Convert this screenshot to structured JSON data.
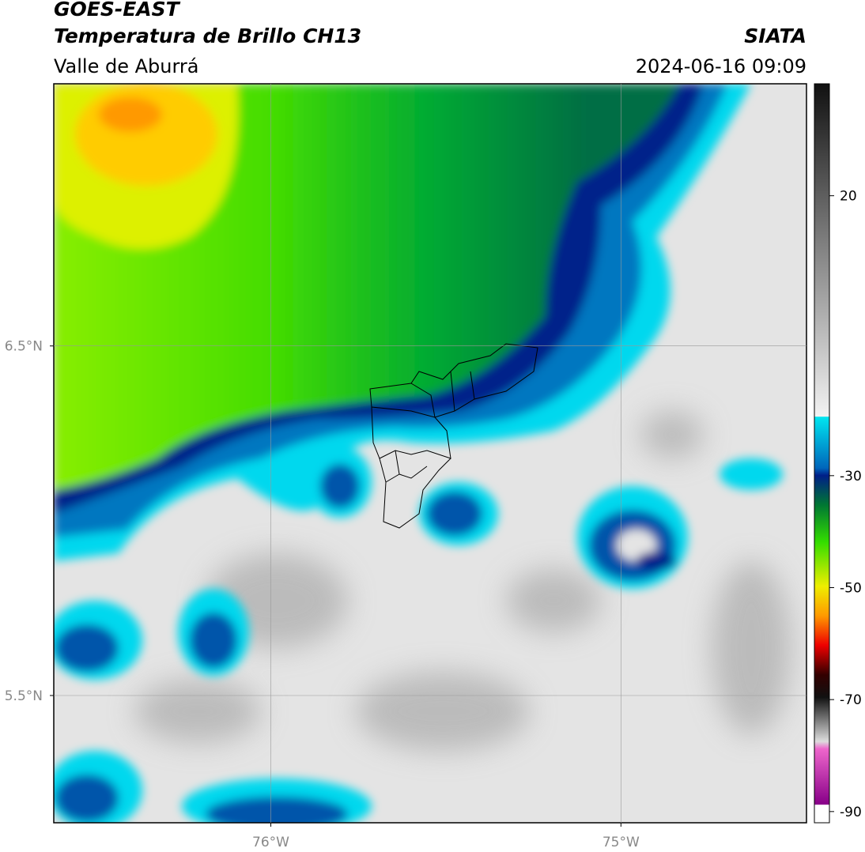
{
  "header": {
    "satellite": "GOES-EAST",
    "product": "Temperatura de Brillo CH13",
    "source": "SIATA",
    "region": "Valle de Aburrá",
    "datetime": "2024-06-16 09:09"
  },
  "map": {
    "xlim": [
      -76.62,
      -74.47
    ],
    "ylim": [
      5.136,
      7.25
    ],
    "xticks": [
      {
        "value": -76,
        "label": "76°W"
      },
      {
        "value": -75,
        "label": "75°W"
      }
    ],
    "yticks": [
      {
        "value": 6.5,
        "label": "6.5°N"
      },
      {
        "value": 5.5,
        "label": "5.5°N"
      }
    ],
    "grid": true
  },
  "colorbar": {
    "lim": [
      -92,
      40
    ],
    "ticks": [
      20,
      -30,
      -50,
      -70,
      -90
    ]
  }
}
